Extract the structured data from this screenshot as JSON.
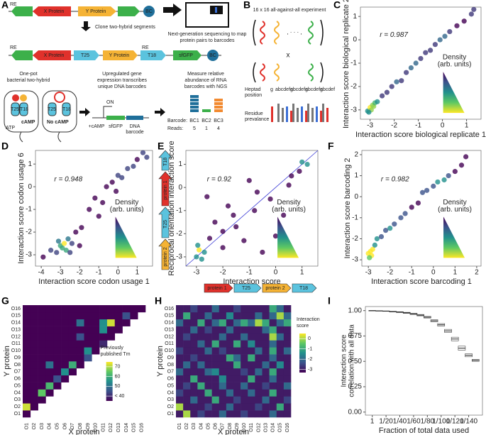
{
  "panels": [
    "A",
    "B",
    "C",
    "D",
    "E",
    "F",
    "G",
    "H",
    "I"
  ],
  "diagram_a": {
    "re": "RE",
    "x_protein": "X Protein",
    "y_protein": "Y Protein",
    "bc": "BC",
    "clone": "Clone two-hybrid segments",
    "ngs": [
      "Next-generation sequencing to map",
      "protein pairs to barcodes"
    ],
    "t25": "T25",
    "t18": "T18",
    "sfgfp": "sfGFP",
    "one_pot": [
      "One-pot",
      "bacterial two-hybrid"
    ],
    "upregulated": [
      "Upregulated gene",
      "expression transcribes",
      "unique DNA barcodes"
    ],
    "measure": [
      "Measure relative",
      "abundance of RNA",
      "barcodes with NGS"
    ],
    "camp": "cAMP",
    "no_camp": "No cAMP",
    "atp": "ATP",
    "on": "ON",
    "plus_camp": "+cAMP",
    "dna_barcode": [
      "DNA",
      "barcode"
    ],
    "barcode_label": "Barcode:",
    "barcodes": [
      "BC1",
      "BC2",
      "BC3"
    ],
    "reads_label": "Reads:",
    "reads": [
      "5",
      "1",
      "4"
    ]
  },
  "diagram_b": {
    "title": "16 x 16 all-against-all experiment",
    "times": "x",
    "heptad": [
      "Heptad",
      "position"
    ],
    "positions": [
      "g",
      "abcdefg",
      "abcdefg",
      "abcdefg",
      "abcdef"
    ],
    "residue": [
      "Residue",
      "prevalance"
    ]
  },
  "diagram_e": {
    "vertical": [
      "T18",
      "protein 1",
      "T25",
      "protein 2"
    ],
    "horizontal": [
      "protein 1",
      "T25",
      "protein 2",
      "T18"
    ]
  },
  "chart_data": [
    {
      "type": "scatter",
      "annotation": "r = 0.987",
      "xlabel": "Interaction score biological replicate 1",
      "ylabel": "Interaction score biological replicate 2",
      "legend_title": "Density",
      "legend_subtitle": "(arb. units)",
      "xlim": [
        -3.4,
        1.6
      ],
      "ylim": [
        -3.4,
        1.4
      ],
      "xticks": [
        -3,
        -2,
        -1,
        0,
        1
      ],
      "yticks": [
        -3,
        -2,
        -1,
        0,
        1
      ],
      "x": [
        -3.1,
        -3.0,
        -2.95,
        -2.9,
        -2.85,
        -3.05,
        -2.8,
        -2.7,
        -2.5,
        -2.3,
        -2.1,
        -1.9,
        -1.7,
        -1.5,
        -1.3,
        -1.1,
        -0.9,
        -0.7,
        -0.5,
        -0.3,
        -0.1,
        0.1,
        0.3,
        0.6,
        0.9,
        1.2,
        1.3
      ],
      "values": [
        -3.05,
        -2.9,
        -3.0,
        -2.8,
        -2.85,
        -3.1,
        -2.7,
        -2.65,
        -2.4,
        -2.25,
        -2.0,
        -1.8,
        -1.75,
        -1.4,
        -1.2,
        -1.0,
        -0.8,
        -0.55,
        -0.45,
        -0.2,
        0.0,
        0.15,
        0.35,
        0.6,
        0.8,
        1.1,
        1.3
      ]
    },
    {
      "type": "scatter",
      "annotation": "r = 0.948",
      "xlabel": "Interaction score codon usage 1",
      "ylabel": "Interaction score codon usage 6",
      "legend_title": "Density",
      "legend_subtitle": "(arb. units)",
      "xlim": [
        -4.3,
        1.8
      ],
      "ylim": [
        -3.5,
        1.6
      ],
      "xticks": [
        -4,
        -3,
        -2,
        -1,
        0,
        1
      ],
      "yticks": [
        -3,
        -2,
        -1,
        0,
        1
      ],
      "x": [
        -3.9,
        -3.5,
        -3.2,
        -3.0,
        -2.9,
        -2.8,
        -2.7,
        -3.1,
        -2.6,
        -2.4,
        -2.2,
        -2.5,
        -1.9,
        -1.5,
        -1.2,
        -0.8,
        -0.6,
        -0.3,
        -0.1,
        0.2,
        0.5,
        0.8,
        1.0,
        1.3,
        1.5,
        -2.0,
        -1.0,
        0.0
      ],
      "values": [
        -3.1,
        -2.8,
        -2.9,
        -2.6,
        -2.7,
        -2.5,
        -2.8,
        -2.4,
        -2.3,
        -2.5,
        -2.0,
        -2.9,
        -1.8,
        -1.0,
        -0.5,
        -0.7,
        0.0,
        0.2,
        -0.2,
        0.4,
        0.8,
        0.9,
        1.2,
        1.5,
        1.3,
        -2.6,
        -1.3,
        0.5
      ]
    },
    {
      "type": "scatter",
      "annotation": "r = 0.92",
      "xlabel": "Interaction score",
      "ylabel": "Reciprocal orientation interaction score",
      "legend_title": "Density",
      "legend_subtitle": "(arb. units)",
      "identity_line": true,
      "xlim": [
        -3.4,
        1.6
      ],
      "ylim": [
        -3.4,
        1.6
      ],
      "xticks": [
        -3,
        -2,
        -1,
        0,
        1
      ],
      "yticks": [
        -3,
        -2,
        -1,
        0,
        1
      ],
      "x": [
        -3.0,
        -2.9,
        -2.8,
        -2.95,
        -2.7,
        -2.5,
        -2.3,
        -2.0,
        -1.8,
        -1.5,
        -1.2,
        -1.0,
        -0.8,
        -0.5,
        -0.2,
        0.0,
        0.3,
        0.6,
        0.9,
        1.0,
        1.2,
        -2.6,
        -2.0,
        -1.6,
        -0.7,
        0.5
      ],
      "values": [
        -3.0,
        -2.7,
        -3.1,
        -2.5,
        -2.8,
        -2.2,
        -1.5,
        -2.6,
        -0.8,
        -1.7,
        -2.3,
        0.3,
        -1.0,
        -2.8,
        -0.5,
        -2.1,
        -1.2,
        0.5,
        0.7,
        1.1,
        1.0,
        -0.4,
        -1.9,
        -1.2,
        -0.2,
        0.1
      ]
    },
    {
      "type": "scatter",
      "annotation": "r = 0.982",
      "xlabel": "Interaction score barcoding 1",
      "ylabel": "Interaction score barcoding 2",
      "legend_title": "Density",
      "legend_subtitle": "(arb. units)",
      "xlim": [
        -3.3,
        2.2
      ],
      "ylim": [
        -3.3,
        2.2
      ],
      "xticks": [
        -3,
        -2,
        -1,
        0,
        1,
        2
      ],
      "yticks": [
        -3,
        -2,
        -1,
        0,
        1,
        2
      ],
      "x": [
        -3.0,
        -2.9,
        -2.85,
        -2.8,
        -2.7,
        -2.6,
        -2.4,
        -2.2,
        -2.0,
        -1.8,
        -1.5,
        -1.3,
        -1.0,
        -0.7,
        -0.5,
        -0.3,
        0.0,
        0.2,
        0.5,
        0.7,
        1.0,
        1.3,
        1.5,
        -2.95
      ],
      "values": [
        -2.7,
        -2.6,
        -2.8,
        -2.5,
        -2.3,
        -2.0,
        -1.9,
        -1.6,
        -1.5,
        -1.3,
        -1.0,
        -0.8,
        -0.5,
        -0.3,
        0.2,
        0.3,
        0.5,
        0.7,
        0.8,
        1.0,
        1.2,
        1.5,
        1.9,
        -2.9
      ]
    },
    {
      "type": "heatmap",
      "xlabel": "X protein",
      "ylabel": "Y protein",
      "legend_title": [
        "Previously",
        "published Tm"
      ],
      "xcategories": [
        "O1",
        "O2",
        "O3",
        "O4",
        "O5",
        "O6",
        "O7",
        "O8",
        "O9",
        "O10",
        "O11",
        "O12",
        "O13",
        "O14",
        "O15",
        "O16"
      ],
      "ycategories": [
        "O1",
        "O2",
        "O3",
        "O4",
        "O5",
        "O6",
        "O7",
        "O8",
        "O9",
        "O10",
        "O11",
        "O12",
        "O13",
        "O14",
        "O15",
        "O16"
      ],
      "colorlim": [
        35,
        75
      ],
      "colorticks": [
        {
          "value": 40,
          "label": "< 40"
        },
        50,
        60,
        70
      ],
      "values": [
        [
          35,
          null,
          null,
          null,
          null,
          null,
          null,
          null,
          null,
          null,
          null,
          null,
          null,
          null,
          null,
          null
        ],
        [
          72,
          35,
          null,
          null,
          null,
          null,
          null,
          null,
          null,
          null,
          null,
          null,
          null,
          null,
          null,
          null
        ],
        [
          35,
          35,
          35,
          null,
          null,
          null,
          null,
          null,
          null,
          null,
          null,
          null,
          null,
          null,
          null,
          null
        ],
        [
          35,
          35,
          65,
          35,
          null,
          null,
          null,
          null,
          null,
          null,
          null,
          null,
          null,
          null,
          null,
          null
        ],
        [
          35,
          35,
          35,
          62,
          35,
          null,
          null,
          null,
          null,
          null,
          null,
          null,
          null,
          null,
          null,
          null
        ],
        [
          35,
          35,
          35,
          35,
          45,
          35,
          null,
          null,
          null,
          null,
          null,
          null,
          null,
          null,
          null,
          null
        ],
        [
          35,
          35,
          35,
          35,
          35,
          55,
          35,
          null,
          null,
          null,
          null,
          null,
          null,
          null,
          null,
          null
        ],
        [
          35,
          35,
          35,
          50,
          35,
          35,
          60,
          35,
          null,
          null,
          null,
          null,
          null,
          null,
          null,
          null
        ],
        [
          35,
          35,
          35,
          35,
          35,
          35,
          35,
          35,
          45,
          null,
          null,
          null,
          null,
          null,
          null,
          null
        ],
        [
          35,
          35,
          35,
          35,
          35,
          35,
          35,
          35,
          55,
          35,
          null,
          null,
          null,
          null,
          null,
          null
        ],
        [
          35,
          35,
          35,
          35,
          35,
          35,
          35,
          35,
          35,
          35,
          40,
          null,
          null,
          null,
          null,
          null
        ],
        [
          35,
          35,
          35,
          35,
          35,
          35,
          35,
          45,
          35,
          35,
          35,
          35,
          null,
          null,
          null,
          null
        ],
        [
          35,
          35,
          35,
          35,
          35,
          35,
          35,
          35,
          35,
          35,
          55,
          35,
          35,
          null,
          null,
          null
        ],
        [
          35,
          35,
          35,
          35,
          35,
          35,
          35,
          50,
          35,
          35,
          55,
          72,
          35,
          35,
          null,
          null
        ],
        [
          35,
          35,
          35,
          35,
          35,
          35,
          35,
          35,
          35,
          35,
          35,
          35,
          35,
          45,
          35,
          null
        ],
        [
          35,
          35,
          35,
          35,
          35,
          35,
          35,
          35,
          35,
          35,
          35,
          35,
          35,
          35,
          35,
          35
        ]
      ]
    },
    {
      "type": "heatmap",
      "xlabel": "X protein",
      "ylabel": "Y protein",
      "legend_title": [
        "Interaction",
        "score"
      ],
      "xcategories": [
        "O1",
        "O2",
        "O3",
        "O4",
        "O5",
        "O6",
        "O7",
        "O8",
        "O9",
        "O10",
        "O11",
        "O12",
        "O13",
        "O14",
        "O15",
        "O16"
      ],
      "ycategories": [
        "O1",
        "O2",
        "O3",
        "O4",
        "O5",
        "O6",
        "O7",
        "O8",
        "O9",
        "O10",
        "O11",
        "O12",
        "O13",
        "O14",
        "O15",
        "O16"
      ],
      "colorlim": [
        -3.3,
        0.5
      ],
      "colorticks": [
        -3,
        -2,
        -1,
        0
      ],
      "values": [
        [
          -3,
          0,
          -3,
          -2.5,
          -3,
          -3,
          -2,
          -3,
          -3,
          -2.5,
          -3,
          -3,
          -3,
          -2,
          -3,
          -3
        ],
        [
          0,
          -3,
          -3,
          -3,
          -2.5,
          -3,
          -3,
          -2,
          -3,
          -3,
          -3,
          -2.5,
          -3,
          -3,
          -1,
          -3
        ],
        [
          -3,
          -3,
          -2,
          -3,
          -3,
          -1,
          -3,
          -3,
          -2.5,
          -3,
          -3,
          -3,
          -2,
          -3,
          -3,
          -2.5
        ],
        [
          -2.5,
          -3,
          -3,
          -3,
          -1,
          -3,
          -3,
          -2,
          -3,
          -3,
          -2,
          -3,
          -3,
          -1,
          -3,
          -3
        ],
        [
          -3,
          -2.5,
          -3,
          -1,
          -3,
          -3,
          -2,
          -3,
          -3,
          -2,
          -3,
          -3,
          -2.5,
          -3,
          -3,
          -2
        ],
        [
          -3,
          -3,
          -1,
          -3,
          -3,
          -3,
          -1.5,
          -3,
          -3,
          -3,
          -1,
          -3,
          -3,
          -2,
          -3,
          -3
        ],
        [
          -2,
          -3,
          -3,
          -3,
          -2,
          -1.5,
          -3,
          -3,
          -3,
          -2.5,
          -3,
          -2,
          -3,
          -1,
          -3,
          -3
        ],
        [
          -3,
          -2,
          -3,
          -2,
          -3,
          -3,
          -3,
          -3,
          -1,
          -3,
          -3,
          -3,
          -2,
          -3,
          -1.5,
          -3
        ],
        [
          -3,
          -3,
          -2.5,
          -3,
          -3,
          -3,
          -3,
          -1,
          -2,
          -3,
          -1,
          -3,
          -3,
          -2,
          -3,
          -3
        ],
        [
          -2.5,
          -3,
          -3,
          -3,
          -2,
          -3,
          -2.5,
          -3,
          -3,
          -3,
          -3,
          -2,
          -3,
          -1,
          -3,
          -2
        ],
        [
          -3,
          -3,
          -3,
          -2,
          -3,
          -1,
          -3,
          -3,
          -1,
          -3,
          -1.5,
          -3,
          -3,
          -2,
          -3,
          -3
        ],
        [
          -3,
          -2.5,
          -3,
          -3,
          -3,
          -3,
          -2,
          -3,
          -3,
          -2,
          -3,
          -3,
          -3,
          0,
          -2,
          -3
        ],
        [
          -3,
          -3,
          -2,
          -3,
          -2.5,
          -3,
          -3,
          -2,
          -3,
          -3,
          -3,
          -3,
          -2,
          -1,
          -3,
          -3
        ],
        [
          -2,
          -3,
          -3,
          -1,
          -3,
          -2,
          -1,
          -3,
          -2,
          -1,
          -2,
          0,
          -1,
          -3,
          -2,
          -1
        ],
        [
          -3,
          -1,
          -3,
          -3,
          -2,
          -3,
          -3,
          -1.5,
          -3,
          -3,
          -3,
          -2,
          -3,
          -2,
          0,
          -2
        ],
        [
          -3,
          -3,
          -2.5,
          -3,
          -3,
          -2,
          -3,
          -3,
          -2.5,
          -3,
          -3,
          -3,
          -3,
          -1,
          -2,
          -3
        ]
      ]
    },
    {
      "type": "box",
      "xlabel": "Fraction of total data used",
      "ylabel": [
        "Interaction score",
        "correlation with all data"
      ],
      "xlim": [
        0,
        17
      ],
      "ylim": [
        -0.03,
        1.04
      ],
      "xticks": [
        1,
        {
          "value": 3,
          "label": "1/20"
        },
        {
          "value": 5,
          "label": "1/40"
        },
        {
          "value": 7,
          "label": "1/60"
        },
        {
          "value": 9,
          "label": "1/80"
        },
        {
          "value": 11,
          "label": "1/100"
        },
        {
          "value": 13,
          "label": "1/120"
        },
        {
          "value": 15,
          "label": "1/140"
        }
      ],
      "yticks": [
        {
          "value": 0,
          "label": "0.00"
        },
        {
          "value": 0.25,
          "label": "0.25"
        },
        {
          "value": 0.5,
          "label": "0.50"
        },
        {
          "value": 0.75,
          "label": "0.75"
        },
        {
          "value": 1,
          "label": "1.00"
        }
      ],
      "x": [
        1,
        2,
        3,
        4,
        5,
        6,
        7,
        8,
        9,
        10,
        11,
        12,
        13,
        14,
        15,
        16
      ],
      "values": [
        1.0,
        0.998,
        0.995,
        0.99,
        0.985,
        0.978,
        0.968,
        0.955,
        0.935,
        0.9,
        0.86,
        0.8,
        0.72,
        0.63,
        0.56,
        0.51
      ],
      "q1": [
        1.0,
        0.998,
        0.993,
        0.987,
        0.981,
        0.973,
        0.962,
        0.948,
        0.927,
        0.89,
        0.848,
        0.785,
        0.702,
        0.61,
        0.545,
        0.5
      ],
      "q3": [
        1.0,
        0.998,
        0.997,
        0.993,
        0.989,
        0.983,
        0.974,
        0.962,
        0.943,
        0.91,
        0.872,
        0.815,
        0.738,
        0.65,
        0.575,
        0.52
      ]
    }
  ]
}
